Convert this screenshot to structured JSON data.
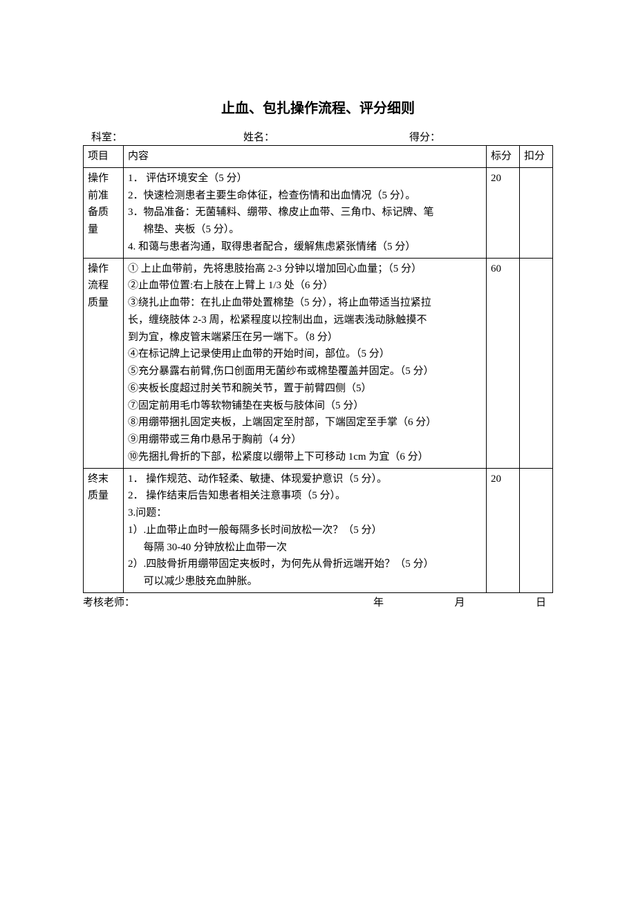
{
  "title": "止血、包扎操作流程、评分细则",
  "header": {
    "dept_label": "科室：",
    "name_label": "姓名：",
    "score_label": "得分："
  },
  "table": {
    "headers": {
      "item": "项目",
      "content": "内容",
      "std_score": "标分",
      "deduct": "扣分"
    },
    "rows": [
      {
        "item": "操作前准备质量",
        "content_lines": [
          "1． 评估环境安全（5 分）",
          "2．快速检测患者主要生命体征，检查伤情和出血情况（5 分）。",
          "3．物品准备：无菌辅料、绷带、橡皮止血带、三角巾、标记牌、笔",
          "棉垫、夹板（5 分）。",
          "4. 和蔼与患者沟通，取得患者配合，缓解焦虑紧张情绪（5 分）"
        ],
        "indent_indices": [
          3
        ],
        "std_score": "20",
        "deduct": ""
      },
      {
        "item": "操作流程质量",
        "content_lines": [
          "①  上止血带前，先将患肢抬高 2-3 分钟以增加回心血量；（5 分）",
          "②止血带位置:右上肢在上臂上 1/3 处（6 分）",
          "③绕扎止血带：在扎止血带处置棉垫（5 分），将止血带适当拉紧拉",
          "长，缠绕肢体 2-3 周，松紧程度以控制出血，远端表浅动脉触摸不",
          "到为宜，橡皮管末端紧压在另一端下。（8 分）",
          "④在标记牌上记录使用止血带的开始时间，部位。（5 分）",
          "⑤充分暴露右前臂,伤口创面用无菌纱布或棉垫覆盖并固定。（5 分）",
          "⑥夹板长度超过肘关节和腕关节，置于前臂四侧（5）",
          "⑦固定前用毛巾等软物铺垫在夹板与肢体间（5 分）",
          "⑧用绷带捆扎固定夹板，上端固定至肘部，下端固定至手掌（6 分）",
          "⑨用绷带或三角巾悬吊于胸前（4 分）",
          "⑩先捆扎骨折的下部，松紧度以绷带上下可移动 1cm 为宜（6 分）",
          " "
        ],
        "indent_indices": [],
        "std_score": "60",
        "deduct": ""
      },
      {
        "item": "终末质量",
        "content_lines": [
          "1． 操作规范、动作轻柔、敏捷、体现爱护意识（5 分）。",
          "2． 操作结束后告知患者相关注意事项（5 分）。",
          "3.问题：",
          "1）.止血带止血时一般每隔多长时间放松一次？（5 分）",
          "每隔 30-40 分钟放松止血带一次",
          "2）.四肢骨折用绷带固定夹板时，为何先从骨折远端开始？（5 分）",
          "可以减少患肢充血肿胀。"
        ],
        "indent_indices": [
          4,
          6
        ],
        "std_score": "20",
        "deduct": ""
      }
    ]
  },
  "footer": {
    "examiner_label": "考核老师：",
    "year": "年",
    "month": "月",
    "day": "日"
  }
}
